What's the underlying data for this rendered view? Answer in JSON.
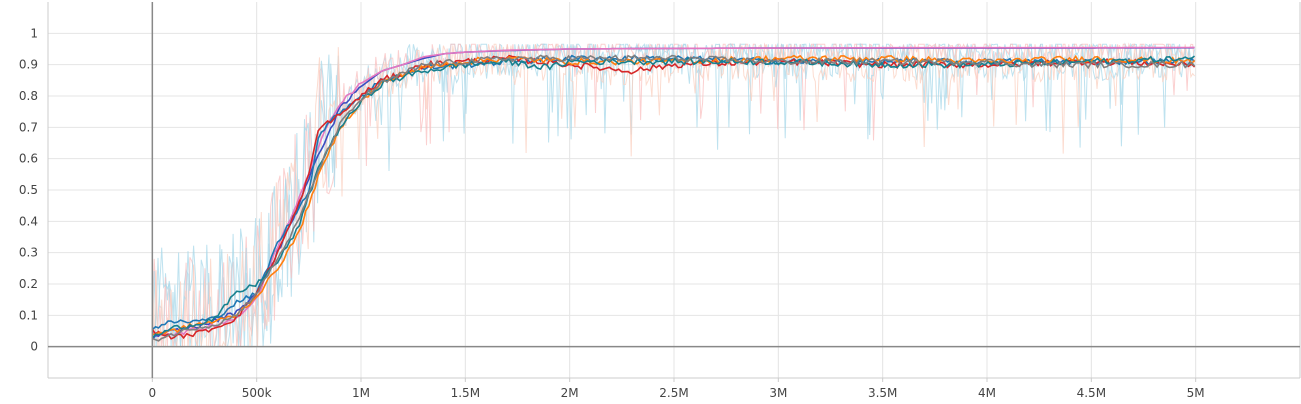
{
  "chart_data": {
    "type": "line",
    "title": "",
    "xlabel": "",
    "ylabel": "",
    "xlim": [
      -500000,
      5500000
    ],
    "ylim": [
      -0.1,
      1.1
    ],
    "grid": true,
    "x_ticks": [
      {
        "value": 0,
        "label": "0"
      },
      {
        "value": 500000,
        "label": "500k"
      },
      {
        "value": 1000000,
        "label": "1M"
      },
      {
        "value": 1500000,
        "label": "1.5M"
      },
      {
        "value": 2000000,
        "label": "2M"
      },
      {
        "value": 2500000,
        "label": "2.5M"
      },
      {
        "value": 3000000,
        "label": "3M"
      },
      {
        "value": 3500000,
        "label": "3.5M"
      },
      {
        "value": 4000000,
        "label": "4M"
      },
      {
        "value": 4500000,
        "label": "4.5M"
      },
      {
        "value": 5000000,
        "label": "5M"
      }
    ],
    "y_ticks": [
      {
        "value": 0,
        "label": "0"
      },
      {
        "value": 0.1,
        "label": "0.1"
      },
      {
        "value": 0.2,
        "label": "0.2"
      },
      {
        "value": 0.3,
        "label": "0.3"
      },
      {
        "value": 0.4,
        "label": "0.4"
      },
      {
        "value": 0.5,
        "label": "0.5"
      },
      {
        "value": 0.6,
        "label": "0.6"
      },
      {
        "value": 0.7,
        "label": "0.7"
      },
      {
        "value": 0.8,
        "label": "0.8"
      },
      {
        "value": 0.9,
        "label": "0.9"
      },
      {
        "value": 1,
        "label": "1"
      }
    ],
    "series": [
      {
        "color": "#3b4cc0",
        "x": [
          0,
          100000,
          250000,
          400000,
          500000,
          600000,
          700000,
          800000,
          900000,
          1000000,
          1100000,
          1200000,
          1300000,
          1400000,
          1500000,
          1700000,
          2000000,
          2500000,
          3000000,
          3500000,
          4000000,
          4500000,
          5000000
        ],
        "y": [
          0.03,
          0.05,
          0.07,
          0.11,
          0.17,
          0.3,
          0.45,
          0.62,
          0.76,
          0.83,
          0.88,
          0.9,
          0.92,
          0.935,
          0.94,
          0.945,
          0.95,
          0.952,
          0.953,
          0.953,
          0.953,
          0.953,
          0.954
        ]
      },
      {
        "color": "#e377c2",
        "x": [
          0,
          100000,
          250000,
          400000,
          500000,
          600000,
          700000,
          800000,
          900000,
          1000000,
          1100000,
          1200000,
          1300000,
          1400000,
          1500000,
          1700000,
          2000000,
          2500000,
          3000000,
          3500000,
          4000000,
          4500000,
          5000000
        ],
        "y": [
          0.05,
          0.04,
          0.06,
          0.09,
          0.15,
          0.32,
          0.47,
          0.65,
          0.78,
          0.84,
          0.88,
          0.9,
          0.925,
          0.935,
          0.94,
          0.946,
          0.95,
          0.952,
          0.953,
          0.954,
          0.954,
          0.954,
          0.955
        ]
      },
      {
        "color": "#1f77b4",
        "x": [
          0,
          100000,
          200000,
          300000,
          400000,
          500000,
          550000,
          600000,
          700000,
          750000,
          800000,
          900000,
          1000000,
          1100000,
          1200000,
          1300000,
          1500000,
          1700000,
          2000000,
          2500000,
          3000000,
          3500000,
          4000000,
          4500000,
          5000000
        ],
        "y": [
          0.06,
          0.08,
          0.08,
          0.09,
          0.14,
          0.17,
          0.25,
          0.33,
          0.44,
          0.5,
          0.68,
          0.75,
          0.8,
          0.85,
          0.87,
          0.89,
          0.9,
          0.91,
          0.92,
          0.92,
          0.91,
          0.91,
          0.91,
          0.91,
          0.91
        ]
      },
      {
        "color": "#d62728",
        "x": [
          0,
          100000,
          200000,
          300000,
          400000,
          500000,
          600000,
          700000,
          750000,
          800000,
          900000,
          1000000,
          1100000,
          1200000,
          1300000,
          1500000,
          1700000,
          2000000,
          2300000,
          2500000,
          3000000,
          3500000,
          4000000,
          4500000,
          5000000
        ],
        "y": [
          0.05,
          0.03,
          0.04,
          0.06,
          0.09,
          0.17,
          0.3,
          0.45,
          0.55,
          0.7,
          0.74,
          0.8,
          0.85,
          0.87,
          0.9,
          0.91,
          0.92,
          0.9,
          0.88,
          0.9,
          0.91,
          0.9,
          0.9,
          0.91,
          0.9
        ]
      },
      {
        "color": "#ff7f0e",
        "x": [
          0,
          100000,
          200000,
          300000,
          400000,
          500000,
          600000,
          700000,
          800000,
          900000,
          1000000,
          1100000,
          1200000,
          1300000,
          1500000,
          1700000,
          2000000,
          2500000,
          3000000,
          3500000,
          4000000,
          4500000,
          5000000
        ],
        "y": [
          0.04,
          0.05,
          0.07,
          0.08,
          0.1,
          0.16,
          0.25,
          0.36,
          0.55,
          0.7,
          0.78,
          0.84,
          0.87,
          0.89,
          0.91,
          0.92,
          0.91,
          0.91,
          0.92,
          0.92,
          0.91,
          0.92,
          0.91
        ]
      },
      {
        "color": "#17808e",
        "x": [
          0,
          100000,
          200000,
          300000,
          400000,
          500000,
          600000,
          700000,
          800000,
          900000,
          1000000,
          1100000,
          1200000,
          1300000,
          1500000,
          1700000,
          1900000,
          2000000,
          2500000,
          3000000,
          3500000,
          4000000,
          4500000,
          5000000
        ],
        "y": [
          0.03,
          0.06,
          0.07,
          0.09,
          0.17,
          0.2,
          0.27,
          0.38,
          0.58,
          0.7,
          0.78,
          0.84,
          0.86,
          0.88,
          0.9,
          0.91,
          0.89,
          0.91,
          0.91,
          0.91,
          0.9,
          0.9,
          0.91,
          0.92
        ]
      },
      {
        "color": "#7f7f7f",
        "x": [
          0,
          100000,
          200000,
          300000,
          400000,
          500000,
          600000,
          700000,
          800000,
          900000,
          1000000,
          1100000,
          1200000,
          1300000,
          1500000,
          1700000,
          2000000,
          2500000,
          3000000,
          3500000,
          4000000,
          4200000,
          4500000,
          5000000
        ],
        "y": [
          0.02,
          0.04,
          0.06,
          0.07,
          0.1,
          0.17,
          0.28,
          0.4,
          0.57,
          0.71,
          0.79,
          0.84,
          0.87,
          0.9,
          0.91,
          0.92,
          0.92,
          0.92,
          0.91,
          0.91,
          0.91,
          0.9,
          0.9,
          0.9
        ]
      }
    ],
    "raw_series_colors": [
      "#a8d8ea",
      "#f9c0c0",
      "#a8d8ea",
      "#fbd0c0"
    ]
  }
}
